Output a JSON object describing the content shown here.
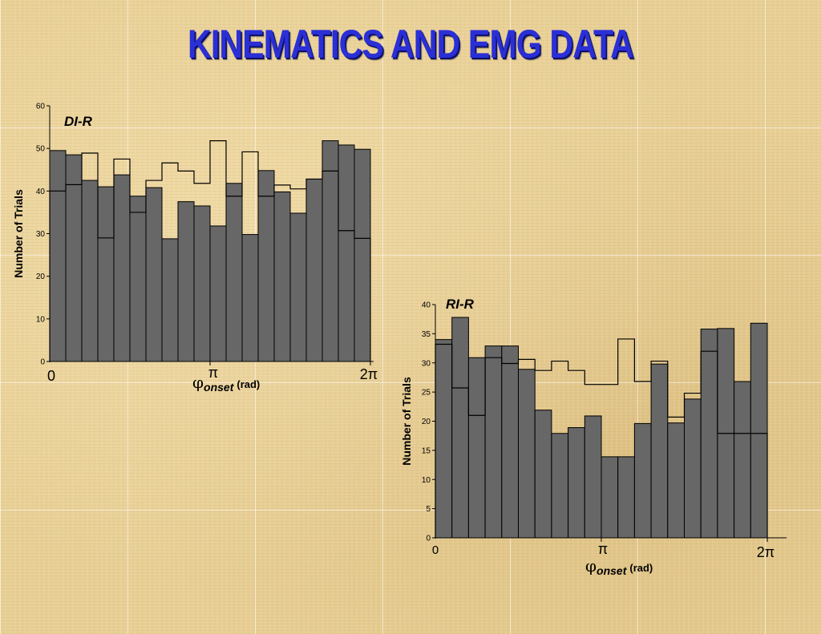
{
  "page": {
    "title": "KINEMATICS AND EMG DATA"
  },
  "colors": {
    "background": "#e8cf95",
    "title": "#2b2fd6",
    "bar_fill": "#676767",
    "bar_stroke": "#000000",
    "outline": "#000000"
  },
  "chart_data": [
    {
      "type": "bar",
      "title": "DI-R",
      "ylabel": "Number of Trials",
      "xlabel": "onset",
      "xlabel_unit": "(rad)",
      "xlabel_symbol": "φ",
      "x_ticks": [
        "0",
        "π",
        "2π"
      ],
      "ylim": [
        0,
        60
      ],
      "y_ticks": [
        "0",
        "10",
        "20",
        "30",
        "40",
        "50",
        "60"
      ],
      "grid": false,
      "bins": 20,
      "series": [
        {
          "style": "filled",
          "values": [
            49.5,
            48.5,
            42.5,
            41,
            43.8,
            38.8,
            40.8,
            28.8,
            37.5,
            36.5,
            31.8,
            41.8,
            29.8,
            44.8,
            39.8,
            34.8,
            42.8,
            51.8,
            50.8,
            49.8
          ]
        },
        {
          "style": "outline",
          "values": [
            40,
            41.5,
            48.9,
            29,
            47.5,
            35,
            42.5,
            46.6,
            44.7,
            41.8,
            51.8,
            38.8,
            49.2,
            38.8,
            41.4,
            40.5,
            42.8,
            44.7,
            30.7,
            28.9
          ]
        }
      ]
    },
    {
      "type": "bar",
      "title": "RI-R",
      "ylabel": "Number of Trials",
      "xlabel": "onset",
      "xlabel_unit": "(rad)",
      "xlabel_symbol": "φ",
      "x_ticks": [
        "0",
        "π",
        "2π"
      ],
      "ylim": [
        0,
        40
      ],
      "y_ticks": [
        "0",
        "5",
        "10",
        "15",
        "20",
        "25",
        "30",
        "35",
        "40"
      ],
      "grid": false,
      "bins": 20,
      "series": [
        {
          "style": "filled",
          "values": [
            34,
            37.8,
            30.9,
            32.9,
            32.9,
            28.9,
            21.9,
            17.9,
            18.9,
            20.9,
            13.9,
            13.9,
            19.6,
            29.8,
            19.7,
            23.8,
            35.8,
            35.9,
            26.8,
            36.8
          ]
        },
        {
          "style": "outline",
          "values": [
            33.2,
            25.7,
            21,
            30.9,
            29.9,
            30.6,
            28.7,
            30.3,
            28.7,
            26.3,
            26.3,
            34.1,
            26.8,
            30.3,
            20.7,
            24.8,
            32,
            17.9,
            17.9,
            17.9
          ]
        }
      ]
    }
  ]
}
